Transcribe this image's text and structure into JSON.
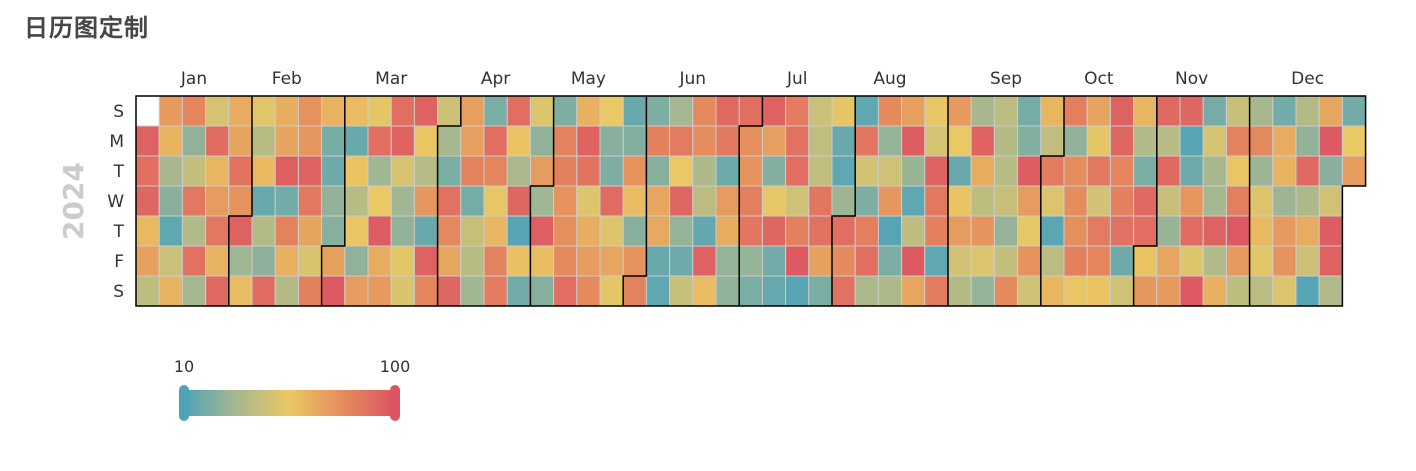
{
  "chart_data": {
    "type": "heatmap",
    "title": "日历图定制",
    "year_label": "2024",
    "weekday_labels": [
      "S",
      "M",
      "T",
      "W",
      "T",
      "F",
      "S"
    ],
    "month_labels": [
      "Jan",
      "Feb",
      "Mar",
      "Apr",
      "May",
      "Jun",
      "Jul",
      "Aug",
      "Sep",
      "Oct",
      "Nov",
      "Dec"
    ],
    "visual_map": {
      "min": 10,
      "max": 100,
      "min_label": "10",
      "max_label": "100",
      "colors": [
        "#4fa3b8",
        "#a7b78f",
        "#eac863",
        "#e58e5d",
        "#dd5563"
      ]
    },
    "values": [
      95,
      90,
      93,
      61,
      70,
      40,
      73,
      63,
      33,
      25,
      14,
      44,
      63,
      81,
      27,
      42,
      86,
      36,
      89,
      32,
      48,
      91,
      62,
      72,
      86,
      63,
      92,
      66,
      69,
      88,
      76,
      95,
      31,
      60,
      52,
      38,
      61,
      17,
      37,
      26,
      91,
      65,
      69,
      96,
      19,
      82,
      64,
      37,
      76,
      74,
      94,
      86,
      69,
      49,
      83,
      63,
      20,
      18,
      27,
      24,
      70,
      98,
      60,
      17,
      57,
      38,
      56,
      27,
      72,
      53,
      90,
      31,
      55,
      97,
      66,
      73,
      90,
      94,
      48,
      31,
      27,
      52,
      49,
      94,
      56,
      38,
      74,
      17,
      95,
      81,
      45,
      33,
      21,
      89,
      80,
      68,
      93,
      71,
      71,
      82,
      20,
      43,
      38,
      31,
      21,
      90,
      81,
      54,
      62,
      82,
      85,
      90,
      57,
      34,
      93,
      12,
      58,
      19,
      50,
      27,
      72,
      31,
      96,
      59,
      24,
      22,
      82,
      83,
      76,
      77,
      79,
      90,
      64,
      94,
      88,
      51,
      65,
      72,
      79,
      55,
      24,
      22,
      91,
      51,
      68,
      53,
      17,
      23,
      76,
      60,
      24,
      75,
      82,
      22,
      83,
      24,
      68,
      67,
      17,
      14,
      32,
      85,
      55,
      93,
      28,
      18,
      43,
      79,
      78,
      35,
      39,
      15,
      95,
      60,
      92,
      86,
      18,
      72,
      66,
      28,
      27,
      90,
      77,
      75,
      84,
      87,
      28,
      21,
      94,
      71,
      23,
      54,
      93,
      19,
      16,
      85,
      89,
      90,
      46,
      83,
      98,
      12,
      44,
      41,
      41,
      87,
      89,
      70,
      21,
      53,
      17,
      14,
      30,
      90,
      79,
      89,
      14,
      87,
      47,
      22,
      84,
      90,
      34,
      79,
      28,
      46,
      74,
      12,
      21,
      35,
      71,
      97,
      29,
      14,
      40,
      98,
      68,
      54,
      48,
      94,
      86,
      83,
      14,
      85,
      73,
      55,
      17,
      57,
      72,
      47,
      37,
      33,
      94,
      66,
      40,
      75,
      50,
      28,
      39,
      37,
      38,
      43,
      28,
      42,
      79,
      20,
      23,
      97,
      72,
      54,
      76,
      46,
      62,
      41,
      85,
      50,
      13,
      39,
      62,
      84,
      27,
      78,
      78,
      77,
      83,
      56,
      69,
      53,
      86,
      47,
      85,
      81,
      57,
      95,
      93,
      81,
      83,
      89,
      18,
      46,
      62,
      36,
      21,
      92,
      90,
      57,
      74,
      92,
      38,
      92,
      43,
      29,
      68,
      73,
      93,
      12,
      18,
      74,
      91,
      51,
      98,
      20,
      48,
      33,
      32,
      95,
      36,
      64,
      43,
      82,
      56,
      84,
      99,
      73,
      40,
      33,
      80,
      30,
      51,
      61,
      52,
      39,
      19,
      66,
      63,
      30,
      73,
      75,
      50,
      37,
      27,
      92,
      35,
      66,
      45,
      12,
      68,
      98,
      25,
      46,
      97,
      95,
      36,
      19,
      55,
      72
    ]
  }
}
